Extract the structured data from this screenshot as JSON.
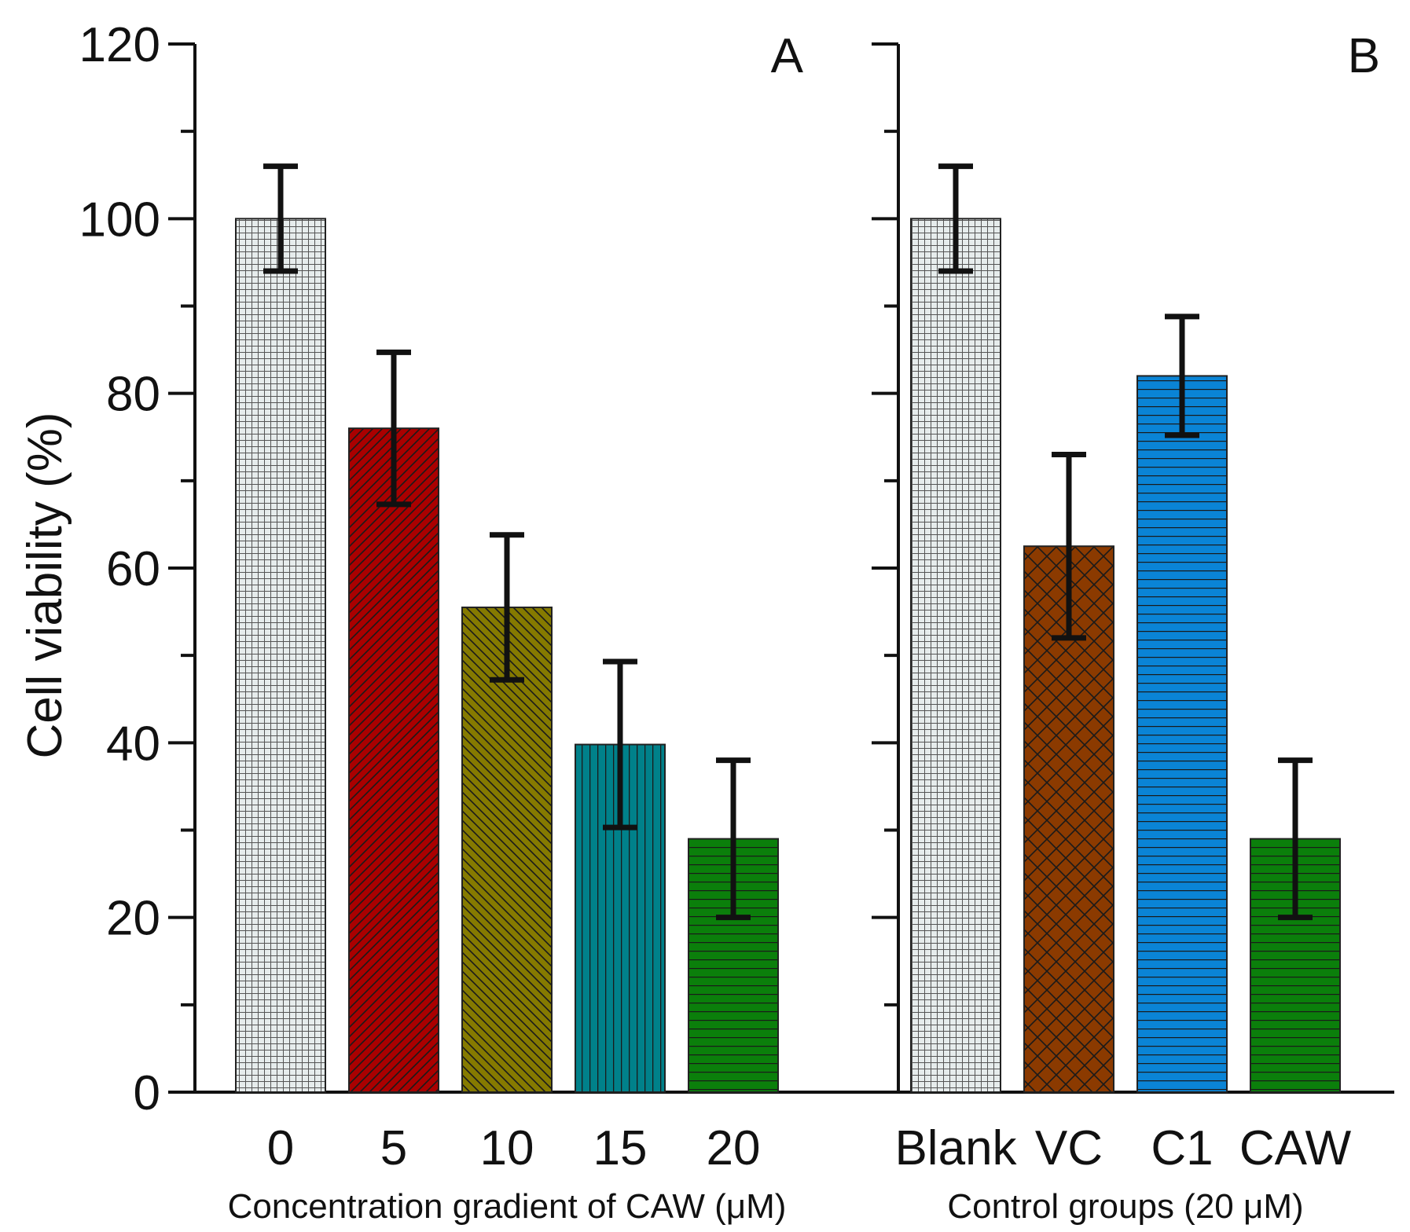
{
  "chart_data": {
    "type": "bar",
    "ylabel": "Cell viability (%)",
    "ylim": [
      0,
      120
    ],
    "yticks": [
      0,
      20,
      40,
      60,
      80,
      100,
      120
    ],
    "minor_tick_step": 10,
    "grid": false,
    "panels": [
      {
        "id": "A",
        "title": "A",
        "xlabel": "Concentration gradient of CAW (μM)",
        "categories": [
          "0",
          "5",
          "10",
          "15",
          "20"
        ],
        "values": [
          100,
          76,
          55.5,
          39.8,
          29
        ],
        "errors": [
          6,
          8.7,
          8.3,
          9.5,
          9
        ],
        "colors": [
          "#e6ecec",
          "#aa0000",
          "#857a00",
          "#00818a",
          "#0b7f0b"
        ],
        "patterns": [
          "grid",
          "diag-up",
          "diag-down",
          "vertical",
          "horizontal"
        ]
      },
      {
        "id": "B",
        "title": "B",
        "xlabel": "Control groups (20 μM)",
        "categories": [
          "Blank",
          "VC",
          "C1",
          "CAW"
        ],
        "values": [
          100,
          62.5,
          82,
          29
        ],
        "errors": [
          6,
          10.5,
          6.8,
          9
        ],
        "colors": [
          "#e6ecec",
          "#8b3a00",
          "#0a84d6",
          "#0b7f0b"
        ],
        "patterns": [
          "grid",
          "crosshatch",
          "horizontal",
          "horizontal"
        ]
      }
    ]
  }
}
